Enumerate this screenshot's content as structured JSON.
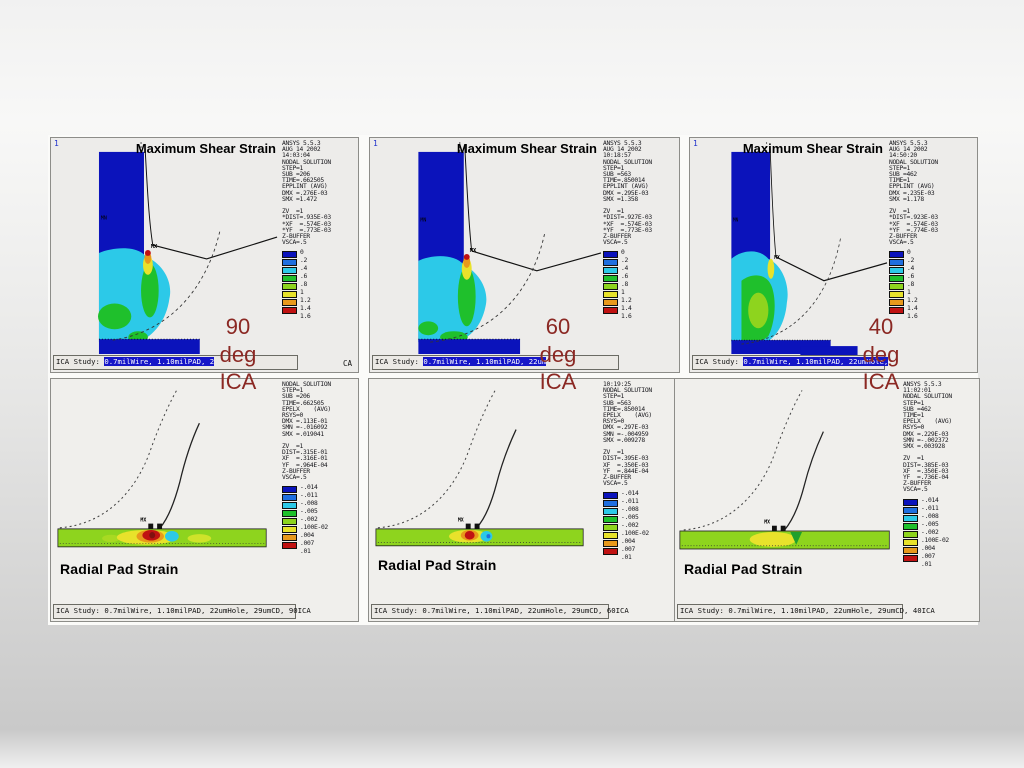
{
  "colors": {
    "scale": [
      "#0b13bb",
      "#1f6fe0",
      "#2cc9e8",
      "#1fc02c",
      "#8ed41e",
      "#e8e22b",
      "#e8991c",
      "#c01212"
    ],
    "deep_blue": "#0b13bb",
    "pad_green": "#8ed41e",
    "label_red": "#8b2823",
    "highlight_blue": "#1616c8",
    "panel_bg": "#edecea"
  },
  "angle_labels": [
    {
      "lines": [
        "90",
        "deg",
        "ICA"
      ]
    },
    {
      "lines": [
        "60",
        "deg",
        "ICA"
      ]
    },
    {
      "lines": [
        "40",
        "deg",
        "ICA"
      ]
    }
  ],
  "top_panels": [
    {
      "corner_mark": "1",
      "title": "Maximum Shear Strain",
      "info_lines": [
        "ANSYS 5.5.3",
        "AUG 14 2002",
        "14:03:04",
        "NODAL SOLUTION",
        "STEP=1",
        "SUB =206",
        "TIME=.662505",
        "EPPLINT (AVG)",
        "DMX =.276E-03",
        "SMX =1.472",
        "",
        "ZV  =1",
        "*DIST=.935E-03",
        "*XF  =.574E-03",
        "*YF  =.773E-03",
        "Z-BUFFER",
        "VSCA=.5"
      ],
      "legend_values": [
        "0",
        ".2",
        ".4",
        ".6",
        ".8",
        "1",
        "1.2",
        "1.4",
        "1.6"
      ],
      "caption_prefix": "ICA Study: ",
      "caption_highlight": "0.7milWire, 1.10milPAD, 2",
      "caption_corner": "CA"
    },
    {
      "corner_mark": "1",
      "title": "Maximum Shear Strain",
      "info_lines": [
        "ANSYS 5.5.3",
        "AUG 14 2002",
        "10:18:57",
        "NODAL SOLUTION",
        "STEP=1",
        "SUB =563",
        "TIME=.850014",
        "EPPLINT (AVG)",
        "DMX =.295E-03",
        "SMX =1.358",
        "",
        "ZV  =1",
        "*DIST=.927E-03",
        "*XF  =.574E-03",
        "*YF  =.773E-03",
        "Z-BUFFER",
        "VSCA=.5"
      ],
      "legend_values": [
        "0",
        ".2",
        ".4",
        ".6",
        ".8",
        "1",
        "1.2",
        "1.4",
        "1.6"
      ],
      "caption_prefix": "ICA Study: ",
      "caption_highlight": "0.7milWire, 1.10milPAD, 22um",
      "caption_corner": ""
    },
    {
      "corner_mark": "1",
      "title": "Maximum Shear Strain",
      "info_lines": [
        "ANSYS 5.5.3",
        "AUG 14 2002",
        "14:50:20",
        "NODAL SOLUTION",
        "STEP=1",
        "SUB =462",
        "TIME=1",
        "EPPLINT (AVG)",
        "DMX =.235E-03",
        "SMX =1.178",
        "",
        "ZV  =1",
        "*DIST=.923E-03",
        "*XF  =.574E-03",
        "*YF  =.774E-03",
        "Z-BUFFER",
        "VSCA=.5"
      ],
      "legend_values": [
        "0",
        ".2",
        ".4",
        ".6",
        ".8",
        "1",
        "1.2",
        "1.4",
        "1.6"
      ],
      "caption_prefix": "ICA Study: ",
      "caption_highlight": "0.7milWire, 1.10milPAD, 22umHole,",
      "caption_corner": ""
    }
  ],
  "bottom_panels": [
    {
      "title": "Radial Pad Strain",
      "info_lines": [
        "NODAL SOLUTION",
        "STEP=1",
        "SUB =206",
        "TIME=.662505",
        "EPELX    (AVG)",
        "RSYS=0",
        "DMX =.113E-01",
        "SMN =-.016092",
        "SMX =.019041",
        "",
        "ZV  =1",
        "DIST=.315E-01",
        "XF  =.316E-01",
        "YF  =.964E-04",
        "Z-BUFFER",
        "VSCA=.5"
      ],
      "legend_values": [
        "-.014",
        "-.011",
        "-.008",
        "-.005",
        "-.002",
        ".100E-02",
        ".004",
        ".007",
        ".01"
      ],
      "caption": "ICA Study: 0.7milWire, 1.10milPAD, 22umHole, 29umCD, 90ICA"
    },
    {
      "title": "Radial Pad Strain",
      "info_lines": [
        "10:19:25",
        "NODAL SOLUTION",
        "STEP=1",
        "SUB =563",
        "TIME=.850014",
        "EPELX    (AVG)",
        "RSYS=0",
        "DMX =.297E-03",
        "SMN =-.004959",
        "SMX =.009278",
        "",
        "ZV  =1",
        "DIST=.395E-03",
        "XF  =.350E-03",
        "YF  =.844E-04",
        "Z-BUFFER",
        "VSCA=.5"
      ],
      "legend_values": [
        "-.014",
        "-.011",
        "-.008",
        "-.005",
        "-.002",
        ".100E-02",
        ".004",
        ".007",
        ".01"
      ],
      "caption": "ICA Study: 0.7milWire, 1.10milPAD, 22umHole, 29umCD, 60ICA"
    },
    {
      "title": "Radial Pad Strain",
      "info_lines": [
        "ANSYS 5.5.3",
        "11:02:01",
        "NODAL SOLUTION",
        "STEP=1",
        "SUB =462",
        "TIME=1",
        "EPELX    (AVG)",
        "RSYS=0",
        "DMX =.229E-03",
        "SMN =-.002372",
        "SMX =.003928",
        "",
        "ZV  =1",
        "DIST=.385E-03",
        "XF  =.350E-03",
        "YF  =.736E-04",
        "Z-BUFFER",
        "VSCA=.5"
      ],
      "legend_values": [
        "-.014",
        "-.011",
        "-.008",
        "-.005",
        "-.002",
        ".100E-02",
        ".004",
        ".007",
        ".01"
      ],
      "caption": "ICA Study: 0.7milWire, 1.10milPAD, 22umHole, 29umCD, 40ICA"
    }
  ]
}
